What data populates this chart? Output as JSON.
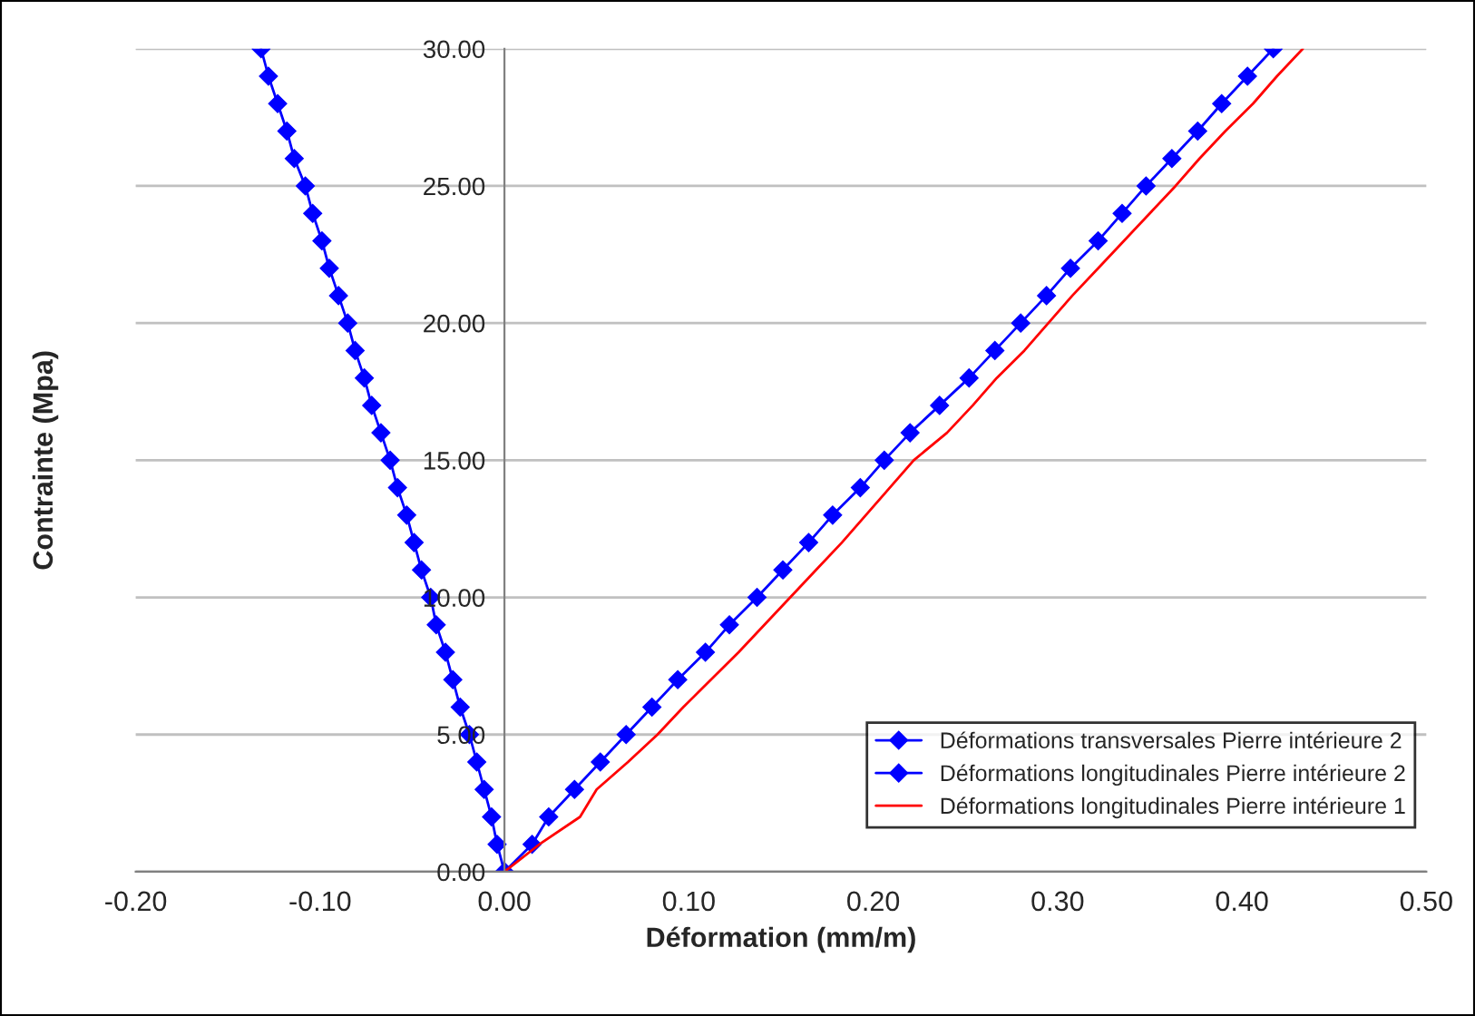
{
  "chart_data": {
    "type": "line",
    "xlabel": "Déformation (mm/m)",
    "ylabel": "Contrainte (Mpa)",
    "xlim": [
      -0.2,
      0.5
    ],
    "ylim": [
      0,
      30
    ],
    "xticks": [
      {
        "value": -0.2,
        "label": "-0.20"
      },
      {
        "value": -0.1,
        "label": "-0.10"
      },
      {
        "value": 0,
        "label": "0.00"
      },
      {
        "value": 0.1,
        "label": "0.10"
      },
      {
        "value": 0.2,
        "label": "0.20"
      },
      {
        "value": 0.3,
        "label": "0.30"
      },
      {
        "value": 0.4,
        "label": "0.40"
      },
      {
        "value": 0.5,
        "label": "0.50"
      }
    ],
    "yticks": [
      {
        "value": 0,
        "label": "0.00"
      },
      {
        "value": 5,
        "label": "5.00"
      },
      {
        "value": 10,
        "label": "10.00"
      },
      {
        "value": 15,
        "label": "15.00"
      },
      {
        "value": 20,
        "label": "20.00"
      },
      {
        "value": 25,
        "label": "25.00"
      },
      {
        "value": 30,
        "label": "30.00"
      }
    ],
    "grid": "y",
    "legend": "bottom right",
    "line_style": "solid",
    "series": [
      {
        "name": "Déformations transversales Pierre intérieure 2",
        "color": "#0000ff",
        "marker": "diamond",
        "x": [
          0,
          -0.004,
          -0.007,
          -0.011,
          -0.015,
          -0.019,
          -0.024,
          -0.028,
          -0.032,
          -0.037,
          -0.04,
          -0.045,
          -0.049,
          -0.053,
          -0.058,
          -0.062,
          -0.067,
          -0.072,
          -0.076,
          -0.081,
          -0.085,
          -0.09,
          -0.095,
          -0.099,
          -0.104,
          -0.108,
          -0.114,
          -0.118,
          -0.123,
          -0.128,
          -0.132
        ],
        "values": [
          0,
          1,
          2,
          3,
          4,
          5,
          6,
          7,
          8,
          9,
          10,
          11,
          12,
          13,
          14,
          15,
          16,
          17,
          18,
          19,
          20,
          21,
          22,
          23,
          24,
          25,
          26,
          27,
          28,
          29,
          30
        ]
      },
      {
        "name": "Déformations longitudinales Pierre intérieure 2",
        "color": "#0000ff",
        "marker": "diamond",
        "x": [
          0,
          0.015,
          0.024,
          0.038,
          0.052,
          0.066,
          0.08,
          0.094,
          0.109,
          0.122,
          0.137,
          0.151,
          0.165,
          0.178,
          0.193,
          0.206,
          0.22,
          0.236,
          0.252,
          0.266,
          0.28,
          0.294,
          0.307,
          0.322,
          0.335,
          0.348,
          0.362,
          0.376,
          0.389,
          0.403,
          0.417
        ],
        "values": [
          0,
          1,
          2,
          3,
          4,
          5,
          6,
          7,
          8,
          9,
          10,
          11,
          12,
          13,
          14,
          15,
          16,
          17,
          18,
          19,
          20,
          21,
          22,
          23,
          24,
          25,
          26,
          27,
          28,
          29,
          30
        ]
      },
      {
        "name": "Déformations longitudinales Pierre intérieure 1",
        "color": "#ff0000",
        "x": [
          0,
          0.019,
          0.041,
          0.05,
          0.067,
          0.083,
          0.097,
          0.112,
          0.127,
          0.141,
          0.155,
          0.169,
          0.183,
          0.196,
          0.209,
          0.222,
          0.24,
          0.254,
          0.267,
          0.282,
          0.295,
          0.308,
          0.322,
          0.336,
          0.35,
          0.364,
          0.377,
          0.391,
          0.406,
          0.419,
          0.433
        ],
        "values": [
          0,
          1,
          2,
          3,
          4,
          5,
          6,
          7,
          8,
          9,
          10,
          11,
          12,
          13,
          14,
          15,
          16,
          17,
          18,
          19,
          20,
          21,
          22,
          23,
          24,
          25,
          26,
          27,
          28,
          29,
          30
        ]
      }
    ]
  }
}
